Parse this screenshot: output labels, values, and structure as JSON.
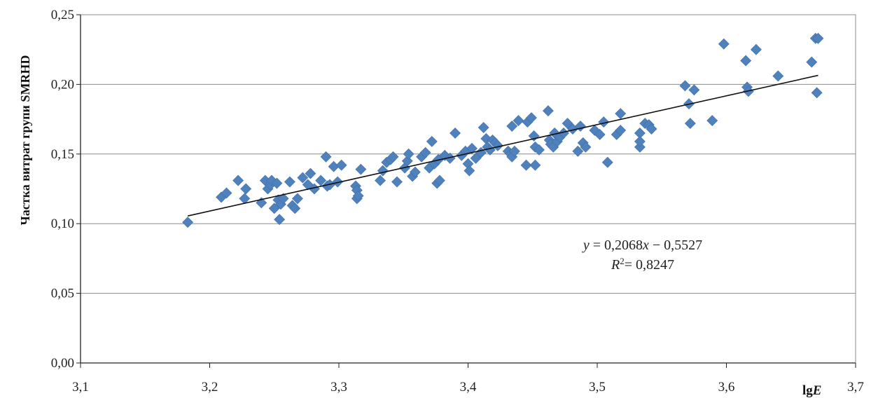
{
  "chart_data": {
    "type": "scatter",
    "title": "",
    "xlabel": "lgE",
    "xlabel_main": "lg",
    "xlabel_var": "E",
    "ylabel": "Частка витрат групи SMRHD",
    "xlim": [
      3.1,
      3.7
    ],
    "ylim": [
      0.0,
      0.25
    ],
    "x_ticks": [
      3.1,
      3.2,
      3.3,
      3.4,
      3.5,
      3.6,
      3.7
    ],
    "x_tick_labels": [
      "3,1",
      "3,2",
      "3,3",
      "3,4",
      "3,5",
      "3,6",
      "3,7"
    ],
    "y_ticks": [
      0.0,
      0.05,
      0.1,
      0.15,
      0.2,
      0.25
    ],
    "y_tick_labels": [
      "0,00",
      "0,05",
      "0,10",
      "0,15",
      "0,20",
      "0,25"
    ],
    "grid": "horizontal",
    "marker": "diamond",
    "marker_color": "#4F81BD",
    "trendline": {
      "slope": 0.2068,
      "intercept": -0.5527,
      "x_range": [
        3.183,
        3.671
      ],
      "color": "#111111",
      "equation_text": "y = 0,2068x − 0,5527",
      "r2_text": "R² = 0,8247",
      "r2_value": "= 0,8247"
    },
    "points": [
      [
        3.183,
        0.101
      ],
      [
        3.209,
        0.119
      ],
      [
        3.213,
        0.122
      ],
      [
        3.222,
        0.131
      ],
      [
        3.227,
        0.118
      ],
      [
        3.228,
        0.125
      ],
      [
        3.24,
        0.115
      ],
      [
        3.243,
        0.131
      ],
      [
        3.245,
        0.125
      ],
      [
        3.247,
        0.128
      ],
      [
        3.248,
        0.131
      ],
      [
        3.25,
        0.111
      ],
      [
        3.252,
        0.129
      ],
      [
        3.253,
        0.117
      ],
      [
        3.254,
        0.103
      ],
      [
        3.255,
        0.114
      ],
      [
        3.257,
        0.118
      ],
      [
        3.262,
        0.13
      ],
      [
        3.264,
        0.113
      ],
      [
        3.266,
        0.111
      ],
      [
        3.268,
        0.118
      ],
      [
        3.272,
        0.133
      ],
      [
        3.276,
        0.128
      ],
      [
        3.278,
        0.136
      ],
      [
        3.281,
        0.125
      ],
      [
        3.286,
        0.131
      ],
      [
        3.29,
        0.148
      ],
      [
        3.291,
        0.127
      ],
      [
        3.293,
        0.128
      ],
      [
        3.296,
        0.141
      ],
      [
        3.299,
        0.13
      ],
      [
        3.302,
        0.142
      ],
      [
        3.313,
        0.127
      ],
      [
        3.314,
        0.124
      ],
      [
        3.314,
        0.118
      ],
      [
        3.315,
        0.12
      ],
      [
        3.317,
        0.139
      ],
      [
        3.332,
        0.131
      ],
      [
        3.334,
        0.138
      ],
      [
        3.337,
        0.144
      ],
      [
        3.34,
        0.146
      ],
      [
        3.342,
        0.148
      ],
      [
        3.345,
        0.13
      ],
      [
        3.351,
        0.14
      ],
      [
        3.353,
        0.145
      ],
      [
        3.354,
        0.15
      ],
      [
        3.357,
        0.134
      ],
      [
        3.359,
        0.137
      ],
      [
        3.364,
        0.148
      ],
      [
        3.367,
        0.151
      ],
      [
        3.37,
        0.14
      ],
      [
        3.372,
        0.159
      ],
      [
        3.374,
        0.143
      ],
      [
        3.376,
        0.129
      ],
      [
        3.377,
        0.146
      ],
      [
        3.378,
        0.131
      ],
      [
        3.382,
        0.149
      ],
      [
        3.386,
        0.147
      ],
      [
        3.39,
        0.165
      ],
      [
        3.395,
        0.149
      ],
      [
        3.398,
        0.152
      ],
      [
        3.4,
        0.143
      ],
      [
        3.401,
        0.138
      ],
      [
        3.403,
        0.154
      ],
      [
        3.406,
        0.147
      ],
      [
        3.41,
        0.151
      ],
      [
        3.412,
        0.169
      ],
      [
        3.414,
        0.161
      ],
      [
        3.415,
        0.155
      ],
      [
        3.417,
        0.153
      ],
      [
        3.419,
        0.16
      ],
      [
        3.421,
        0.158
      ],
      [
        3.423,
        0.156
      ],
      [
        3.431,
        0.152
      ],
      [
        3.433,
        0.15
      ],
      [
        3.434,
        0.148
      ],
      [
        3.434,
        0.17
      ],
      [
        3.436,
        0.152
      ],
      [
        3.439,
        0.174
      ],
      [
        3.445,
        0.142
      ],
      [
        3.446,
        0.173
      ],
      [
        3.449,
        0.176
      ],
      [
        3.451,
        0.163
      ],
      [
        3.452,
        0.155
      ],
      [
        3.452,
        0.142
      ],
      [
        3.455,
        0.153
      ],
      [
        3.462,
        0.181
      ],
      [
        3.463,
        0.16
      ],
      [
        3.464,
        0.157
      ],
      [
        3.466,
        0.155
      ],
      [
        3.467,
        0.165
      ],
      [
        3.469,
        0.159
      ],
      [
        3.471,
        0.162
      ],
      [
        3.474,
        0.165
      ],
      [
        3.477,
        0.172
      ],
      [
        3.481,
        0.168
      ],
      [
        3.485,
        0.152
      ],
      [
        3.487,
        0.17
      ],
      [
        3.489,
        0.158
      ],
      [
        3.491,
        0.155
      ],
      [
        3.498,
        0.167
      ],
      [
        3.502,
        0.164
      ],
      [
        3.505,
        0.173
      ],
      [
        3.508,
        0.144
      ],
      [
        3.515,
        0.164
      ],
      [
        3.518,
        0.167
      ],
      [
        3.518,
        0.179
      ],
      [
        3.533,
        0.165
      ],
      [
        3.533,
        0.155
      ],
      [
        3.533,
        0.159
      ],
      [
        3.537,
        0.172
      ],
      [
        3.54,
        0.171
      ],
      [
        3.542,
        0.168
      ],
      [
        3.568,
        0.199
      ],
      [
        3.571,
        0.186
      ],
      [
        3.572,
        0.172
      ],
      [
        3.575,
        0.196
      ],
      [
        3.589,
        0.174
      ],
      [
        3.598,
        0.229
      ],
      [
        3.615,
        0.217
      ],
      [
        3.616,
        0.198
      ],
      [
        3.617,
        0.195
      ],
      [
        3.623,
        0.225
      ],
      [
        3.64,
        0.206
      ],
      [
        3.666,
        0.216
      ],
      [
        3.669,
        0.233
      ],
      [
        3.671,
        0.233
      ],
      [
        3.67,
        0.194
      ]
    ]
  }
}
